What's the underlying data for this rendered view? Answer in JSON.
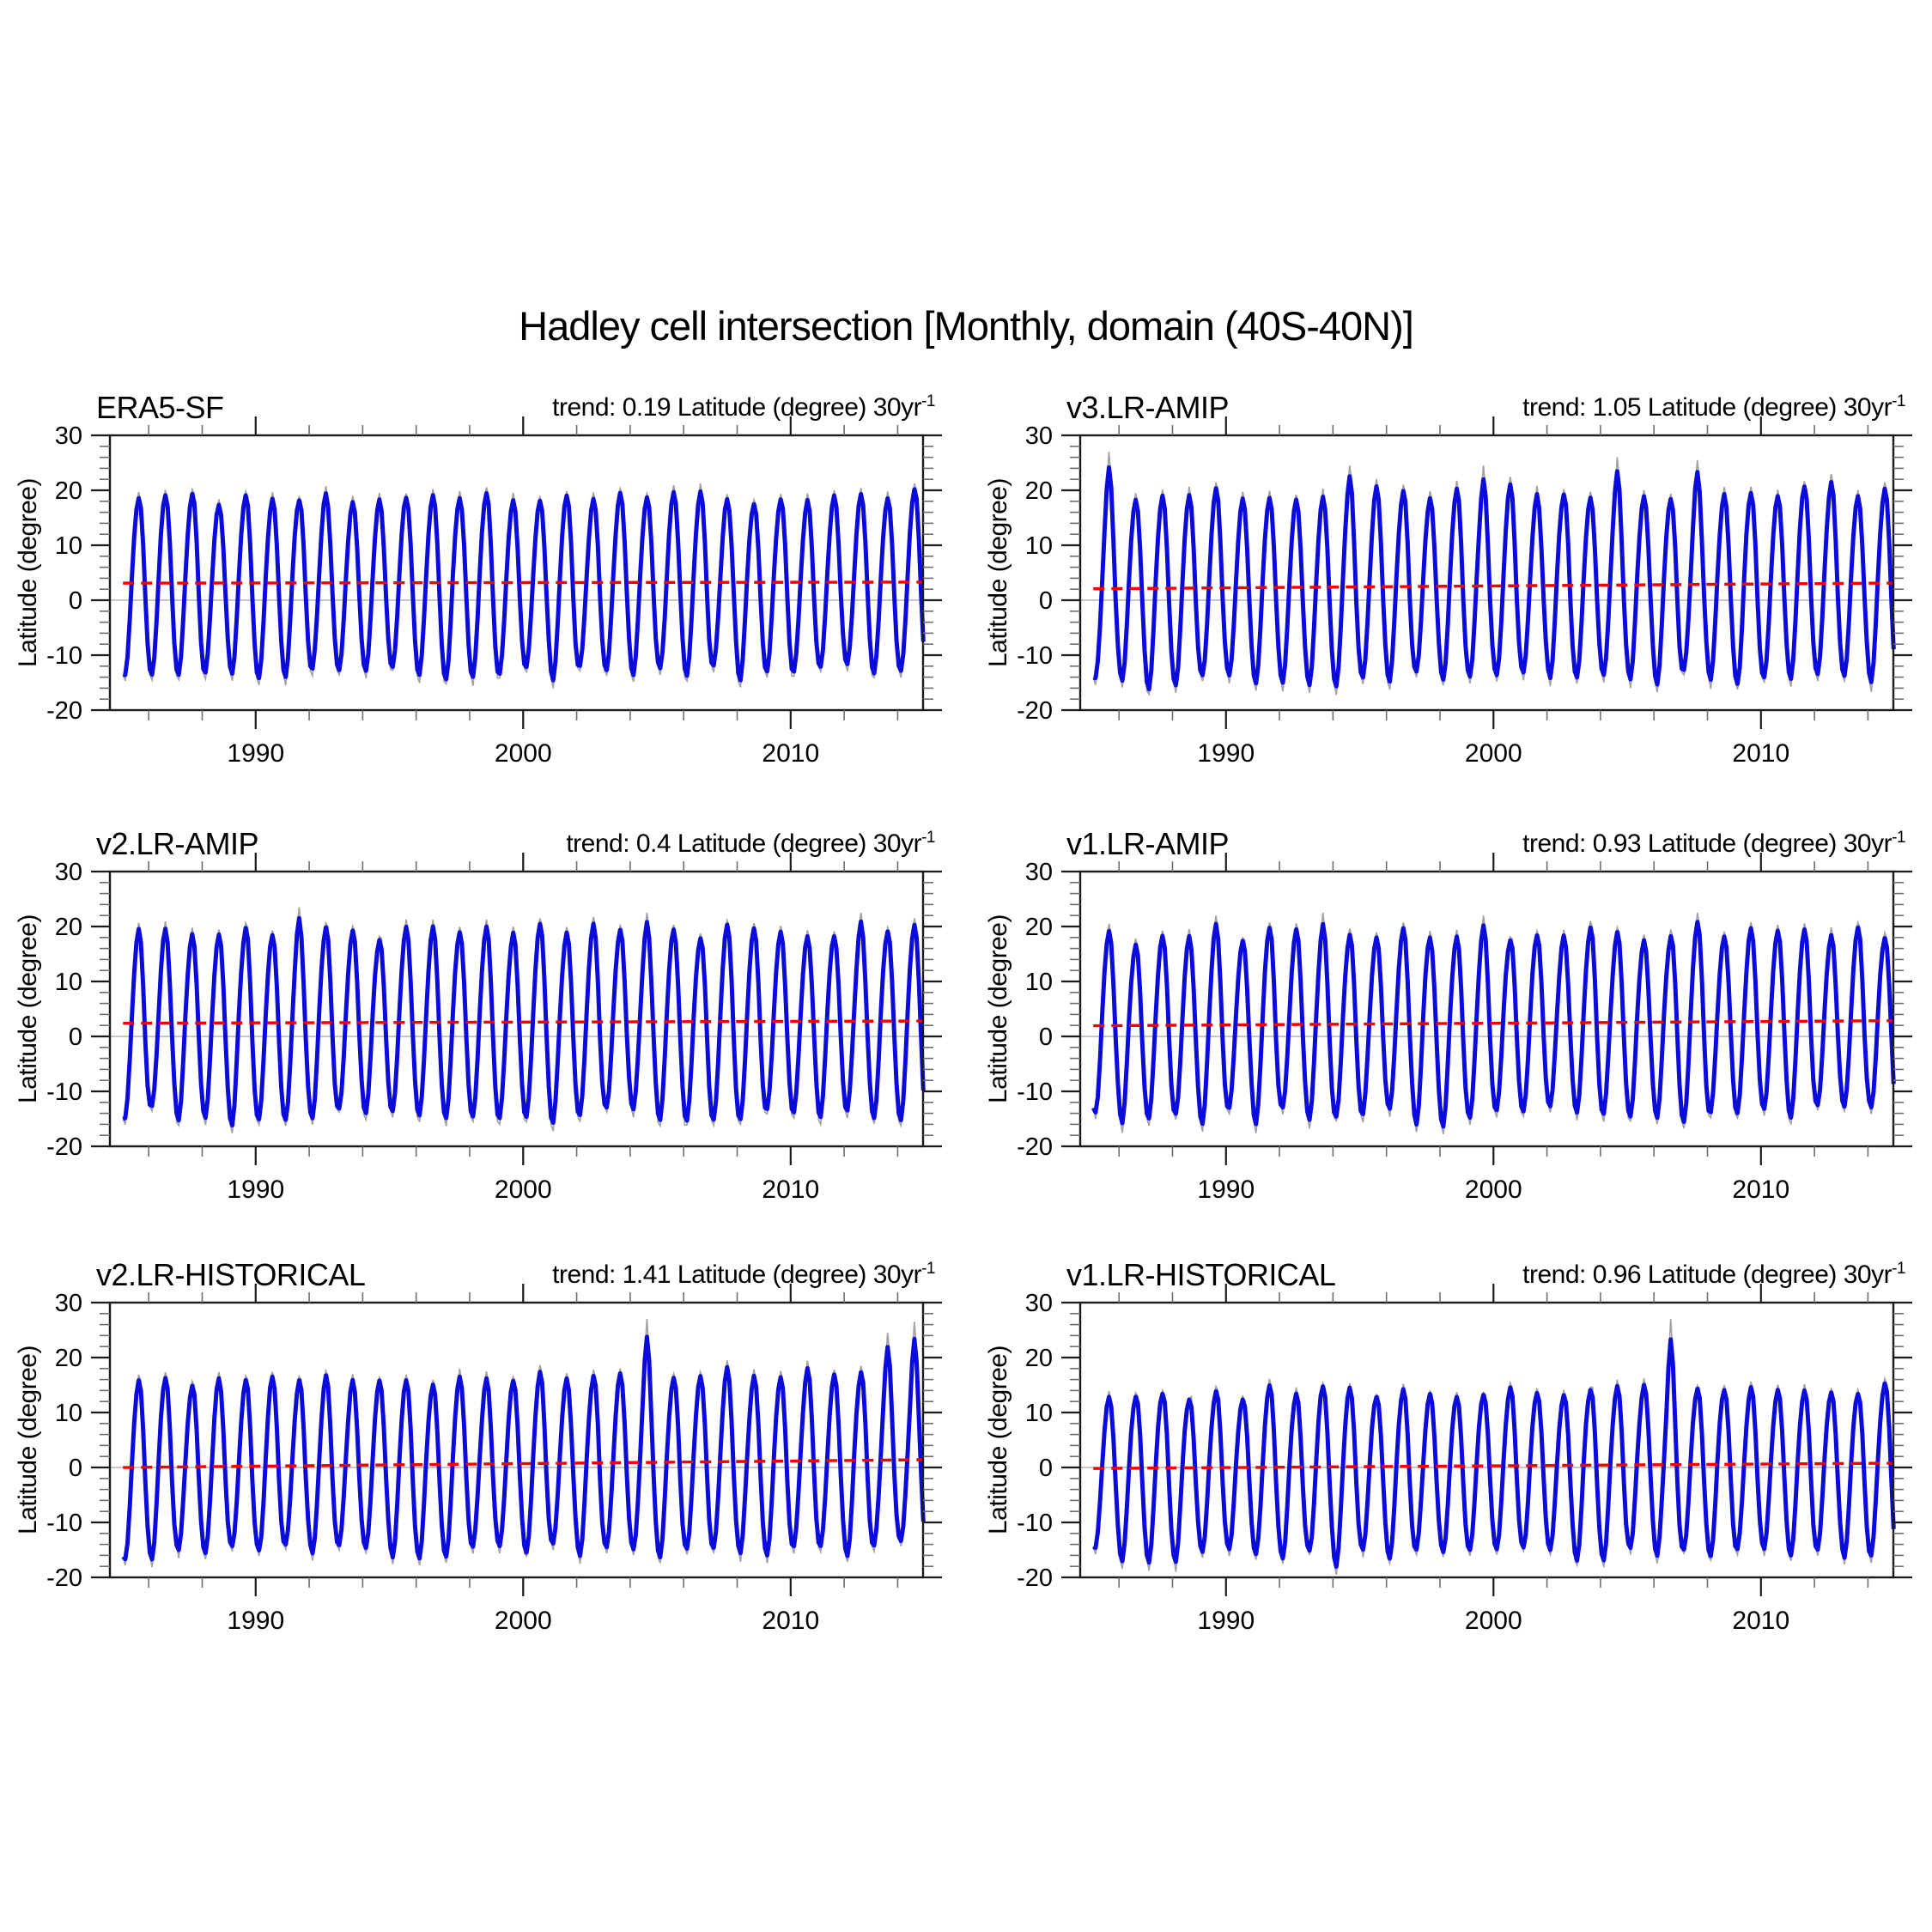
{
  "title": "Hadley cell intersection [Monthly, domain (40S-40N)]",
  "chart_data": {
    "type": "line",
    "title": "Hadley cell intersection [Monthly, domain (40S-40N)]",
    "grid": "off",
    "legend": "none",
    "x_axis": {
      "range": [
        1984.55,
        2014.95
      ],
      "major_ticks": [
        1990,
        2000,
        2010
      ],
      "minor_step": 2,
      "start_year": 1985,
      "end_year": 2014,
      "samples_per_year": 12
    },
    "y_axis": {
      "label": "Latitude (degree)",
      "range": [
        -20,
        30
      ],
      "major_ticks": [
        -20,
        -10,
        0,
        10,
        20,
        30
      ],
      "minor_step": 2
    },
    "zero_line": 0,
    "colors": {
      "monthly_line": "#a3a3a3",
      "smoothed_line": "#0b0bdc",
      "trend_line": "#f20000",
      "zero_line": "#b3b3b3",
      "axis": "#1a1a1a"
    },
    "panels": [
      {
        "name": "ERA5-SF",
        "trend_label": "trend: 0.19 Latitude (degree) 30yr",
        "trend_sup": "-1",
        "trend_per_30yr": 0.19,
        "mean_latitude": 3.2,
        "monthly_climatology": [
          -16.5,
          -17.5,
          -14,
          -7,
          1.5,
          9,
          14,
          16.5,
          15,
          8,
          -3,
          -11.5
        ],
        "amp_jitter": 0.09,
        "noise": 0.6,
        "seed": 11,
        "events": []
      },
      {
        "name": "v3.LR-AMIP",
        "trend_label": "trend: 1.05 Latitude (degree) 30yr",
        "trend_sup": "-1",
        "trend_per_30yr": 1.05,
        "mean_latitude": 2.6,
        "monthly_climatology": [
          -17,
          -18.5,
          -15,
          -7.5,
          2,
          10,
          15.5,
          18.5,
          16.5,
          8.5,
          -3.5,
          -12
        ],
        "amp_jitter": 0.09,
        "noise": 0.6,
        "seed": 22,
        "events": [
          {
            "year": 1985,
            "month": 7,
            "value": 27
          },
          {
            "year": 1994,
            "month": 7,
            "value": 24.5
          },
          {
            "year": 1999,
            "month": 7,
            "value": 24.5
          },
          {
            "year": 2004,
            "month": 7,
            "value": 26
          },
          {
            "year": 2007,
            "month": 7,
            "value": 25.5
          }
        ]
      },
      {
        "name": "v2.LR-AMIP",
        "trend_label": "trend: 0.4 Latitude (degree) 30yr",
        "trend_sup": "-1",
        "trend_per_30yr": 0.4,
        "mean_latitude": 2.6,
        "monthly_climatology": [
          -17,
          -18,
          -14.5,
          -7,
          2,
          9.5,
          15,
          17.5,
          16,
          8,
          -3.5,
          -12
        ],
        "amp_jitter": 0.09,
        "noise": 0.6,
        "seed": 33,
        "events": [
          {
            "year": 1991,
            "month": 7,
            "value": 23.5
          },
          {
            "year": 2004,
            "month": 7,
            "value": 22.5
          },
          {
            "year": 2012,
            "month": 7,
            "value": 22.5
          }
        ]
      },
      {
        "name": "v1.LR-AMIP",
        "trend_label": "trend: 0.93 Latitude (degree) 30yr",
        "trend_sup": "-1",
        "trend_per_30yr": 0.93,
        "mean_latitude": 2.4,
        "monthly_climatology": [
          -16.5,
          -18,
          -14.5,
          -7,
          2,
          9.5,
          14.5,
          17,
          15.5,
          8,
          -3.5,
          -12
        ],
        "amp_jitter": 0.1,
        "noise": 0.6,
        "seed": 44,
        "events": [
          {
            "year": 1989,
            "month": 7,
            "value": 22
          },
          {
            "year": 1993,
            "month": 7,
            "value": 22.5
          },
          {
            "year": 1999,
            "month": 7,
            "value": 22
          },
          {
            "year": 2007,
            "month": 7,
            "value": 22.5
          }
        ]
      },
      {
        "name": "v2.LR-HISTORICAL",
        "trend_label": "trend: 1.41 Latitude (degree) 30yr",
        "trend_sup": "-1",
        "trend_per_30yr": 1.41,
        "mean_latitude": 0.7,
        "monthly_climatology": [
          -15.5,
          -17,
          -14,
          -7,
          1.5,
          9,
          14.5,
          17,
          15.5,
          8,
          -3.5,
          -11.5
        ],
        "amp_jitter": 0.08,
        "noise": 0.6,
        "seed": 55,
        "events": [
          {
            "year": 2004,
            "month": 7,
            "value": 27
          },
          {
            "year": 2013,
            "month": 7,
            "value": 24.5
          },
          {
            "year": 2014,
            "month": 7,
            "value": 26.5
          }
        ]
      },
      {
        "name": "v1.LR-HISTORICAL",
        "trend_label": "trend: 0.96 Latitude (degree) 30yr",
        "trend_sup": "-1",
        "trend_per_30yr": 0.96,
        "mean_latitude": 0.3,
        "monthly_climatology": [
          -15.5,
          -17,
          -14,
          -7,
          1,
          8,
          12.5,
          14.5,
          13.5,
          7,
          -3.5,
          -11.5
        ],
        "amp_jitter": 0.09,
        "noise": 0.6,
        "seed": 66,
        "events": [
          {
            "year": 2006,
            "month": 7,
            "value": 27
          },
          {
            "year": 1988,
            "month": 1,
            "value": -19
          },
          {
            "year": 1994,
            "month": 1,
            "value": -19.5
          }
        ]
      }
    ]
  }
}
